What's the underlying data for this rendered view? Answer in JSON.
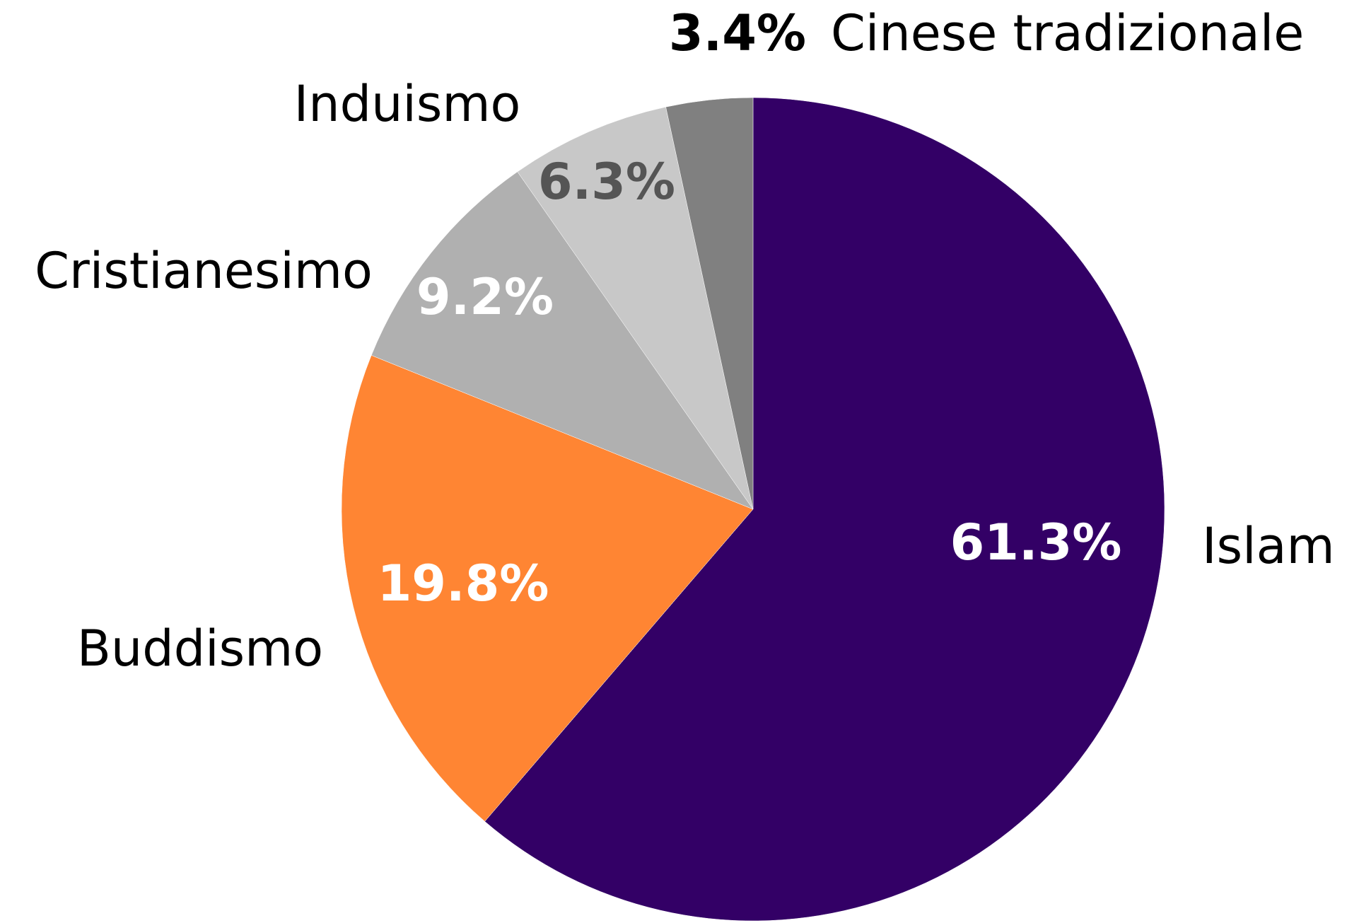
{
  "chart_data": {
    "type": "pie",
    "categories": [
      "Islam",
      "Buddismo",
      "Cristianesimo",
      "Induismo",
      "Cinese tradizionale"
    ],
    "values": [
      61.3,
      19.8,
      9.2,
      6.3,
      3.4
    ],
    "value_labels": [
      "61.3%",
      "19.8%",
      "9.2%",
      "6.3%",
      "3.4%"
    ],
    "colors": [
      "#330066",
      "#ff8533",
      "#b0b0b0",
      "#c8c8c8",
      "#808080"
    ]
  }
}
